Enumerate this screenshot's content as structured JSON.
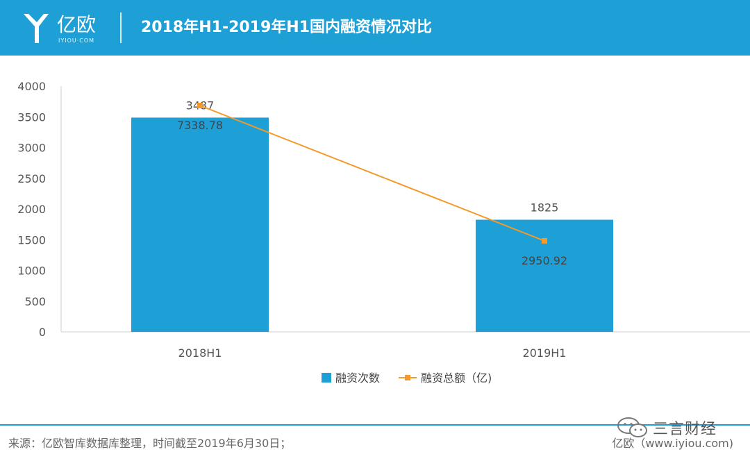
{
  "header": {
    "logo_text": "亿欧",
    "logo_sub": "IYIOU·COM",
    "title": "2018年H1-2019年H1国内融资情况对比"
  },
  "chart_data": {
    "type": "bar",
    "categories": [
      "2018H1",
      "2019H1"
    ],
    "ylim": [
      0,
      4000
    ],
    "yticks": [
      0,
      500,
      1000,
      1500,
      2000,
      2500,
      3000,
      3500,
      4000
    ],
    "series": [
      {
        "name": "融资次数",
        "kind": "bar",
        "values": [
          3487,
          1825
        ],
        "labels": [
          "3487",
          "1825"
        ],
        "color": "#1e9fd6"
      },
      {
        "name": "融资总额（亿)",
        "kind": "line",
        "values": [
          7338.78,
          2950.92
        ],
        "labels": [
          "7338.78",
          "2950.92"
        ],
        "color": "#f39a2a"
      }
    ],
    "legend_position": "bottom"
  },
  "footer": {
    "source": "来源：亿欧智库数据库整理，时间截至2019年6月30日；",
    "credit": "亿欧（www.iyiou.com)",
    "watermark": "三言财经"
  }
}
